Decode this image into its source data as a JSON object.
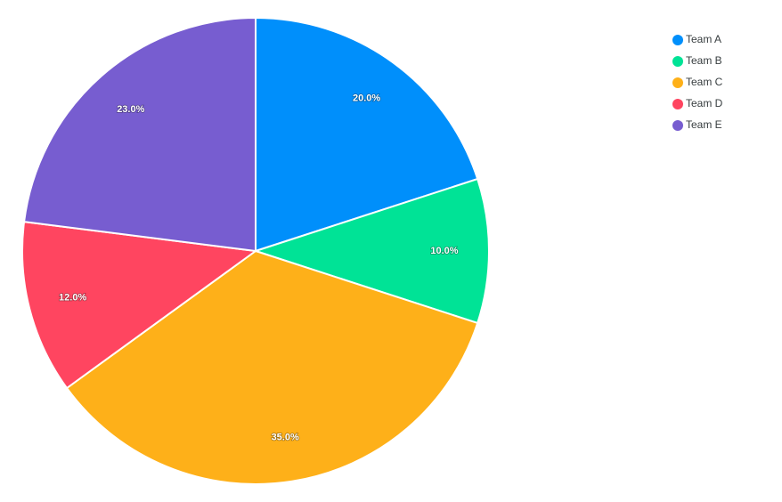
{
  "chart_data": {
    "type": "pie",
    "categories": [
      "Team A",
      "Team B",
      "Team C",
      "Team D",
      "Team E"
    ],
    "values": [
      20,
      10,
      35,
      12,
      23
    ],
    "value_labels": [
      "20.0%",
      "10.0%",
      "35.0%",
      "12.0%",
      "23.0%"
    ],
    "colors": [
      "#008ffb",
      "#00e396",
      "#feb019",
      "#ff4560",
      "#775dd0"
    ]
  }
}
